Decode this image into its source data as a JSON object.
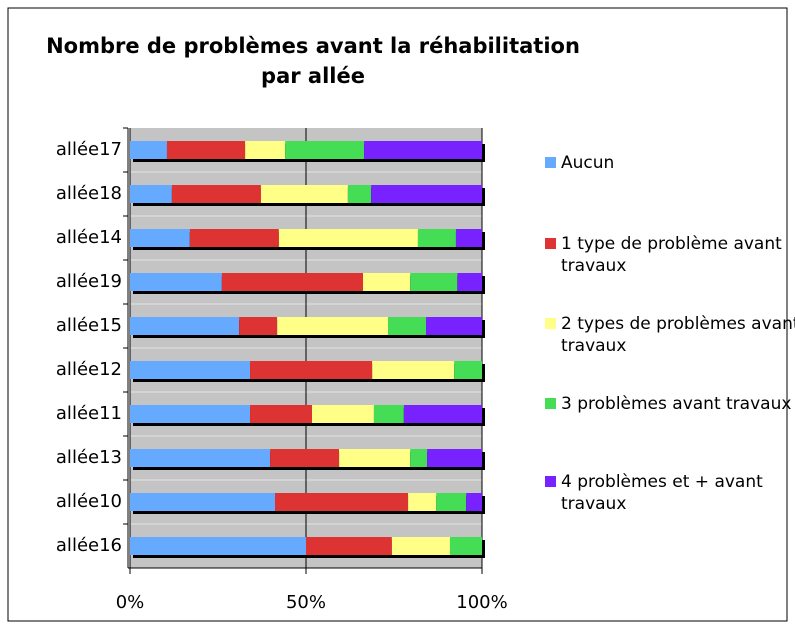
{
  "chart_data": {
    "type": "stacked_barh",
    "title": "Nombre de problèmes avant la réhabilitation",
    "subtitle": "par allée",
    "categories": [
      "allée17",
      "allée18",
      "allée14",
      "allée19",
      "allée15",
      "allée12",
      "allée11",
      "allée13",
      "allée10",
      "allée16"
    ],
    "series": [
      {
        "name": "Aucun",
        "color": "#66aaff",
        "values": [
          10.5,
          11.9,
          17,
          26.1,
          31,
          34.1,
          34.1,
          39.8,
          41.2,
          50
        ]
      },
      {
        "name": "1 type de problème avant travaux",
        "color": "#dd3333",
        "values": [
          22.2,
          25.3,
          25.3,
          40.1,
          10.8,
          34.7,
          17.6,
          19.6,
          37.8,
          24.4
        ]
      },
      {
        "name": "2 types de problèmes avant travaux",
        "color": "#ffff88",
        "values": [
          11.4,
          24.7,
          39.5,
          13.4,
          31.5,
          23.3,
          17.6,
          20.2,
          8,
          16.5
        ]
      },
      {
        "name": "3 problèmes avant travaux",
        "color": "#44dd55",
        "values": [
          22.4,
          6.6,
          10.8,
          13.4,
          10.8,
          7.9,
          8.5,
          4.8,
          8.5,
          9.1
        ]
      },
      {
        "name": "4 problèmes et + avant travaux",
        "color": "#7722ff",
        "values": [
          33.5,
          31.5,
          7.4,
          7,
          15.9,
          0,
          22.2,
          15.6,
          4.5,
          0
        ]
      }
    ],
    "xlim": [
      0,
      100
    ],
    "xticks": [
      {
        "value": 0,
        "label": "0%"
      },
      {
        "value": 50,
        "label": "50%"
      },
      {
        "value": 100,
        "label": "100%"
      }
    ],
    "grid": true
  }
}
